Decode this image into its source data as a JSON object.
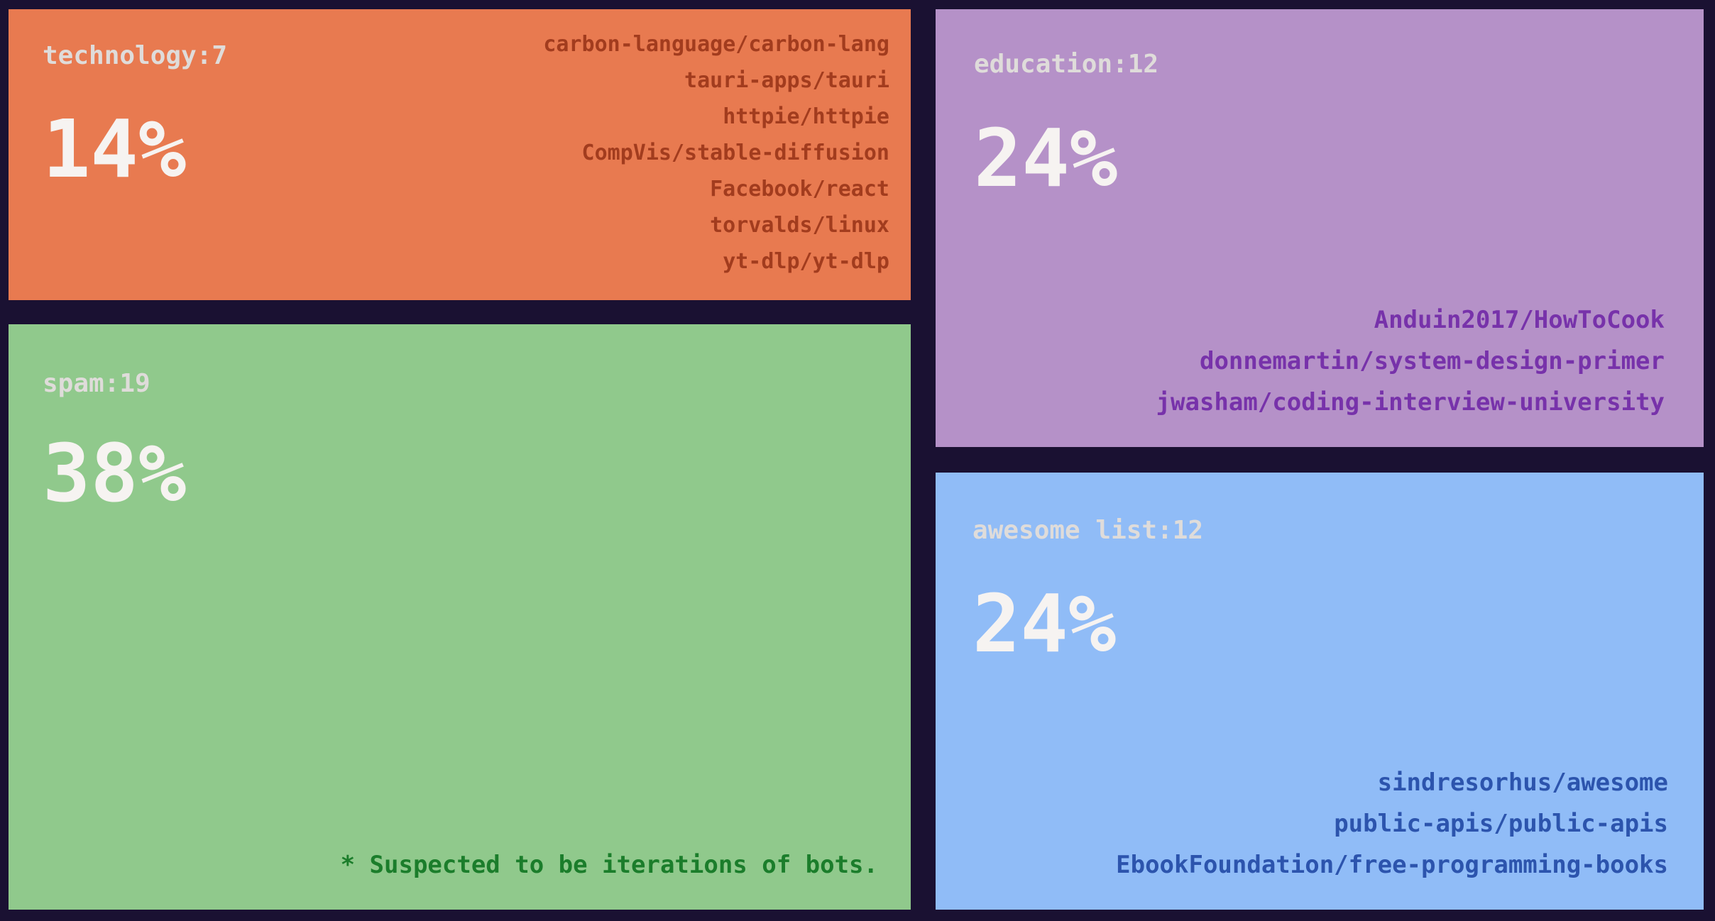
{
  "colors": {
    "background": "#1a1132",
    "label_text": "#dfdcda",
    "percent_text": "#f6f3f1"
  },
  "chart_data": {
    "type": "treemap",
    "title": "",
    "categories": [
      "technology",
      "spam",
      "education",
      "awesome list"
    ],
    "values": [
      7,
      19,
      12,
      12
    ],
    "percents": [
      14,
      38,
      24,
      24
    ],
    "legend": "none",
    "layout_hint": {
      "left_column": [
        "technology",
        "spam"
      ],
      "right_column": [
        "education",
        "awesome list"
      ]
    },
    "cells": [
      {
        "name": "technology",
        "count": 7,
        "label": "technology:7",
        "percent": 14,
        "percent_label": "14%",
        "color": "#e87a50",
        "text_color": "#a23c1e",
        "repos": [
          "carbon-language/carbon-lang",
          "tauri-apps/tauri",
          "httpie/httpie",
          "CompVis/stable-diffusion",
          "Facebook/react",
          "torvalds/linux",
          "yt-dlp/yt-dlp"
        ]
      },
      {
        "name": "spam",
        "count": 19,
        "label": "spam:19",
        "percent": 38,
        "percent_label": "38%",
        "color": "#90c98c",
        "text_color": "#1b7d2b",
        "note": "* Suspected to be iterations of bots."
      },
      {
        "name": "education",
        "count": 12,
        "label": "education:12",
        "percent": 24,
        "percent_label": "24%",
        "color": "#b591c8",
        "text_color": "#7732aa",
        "repos": [
          "Anduin2017/HowToCook",
          "donnemartin/system-design-primer",
          "jwasham/coding-interview-university"
        ]
      },
      {
        "name": "awesome list",
        "count": 12,
        "label": "awesome list:12",
        "percent": 24,
        "percent_label": "24%",
        "color": "#90bcf7",
        "text_color": "#2c54ad",
        "repos": [
          "sindresorhus/awesome",
          "public-apis/public-apis",
          "EbookFoundation/free-programming-books"
        ]
      }
    ]
  }
}
